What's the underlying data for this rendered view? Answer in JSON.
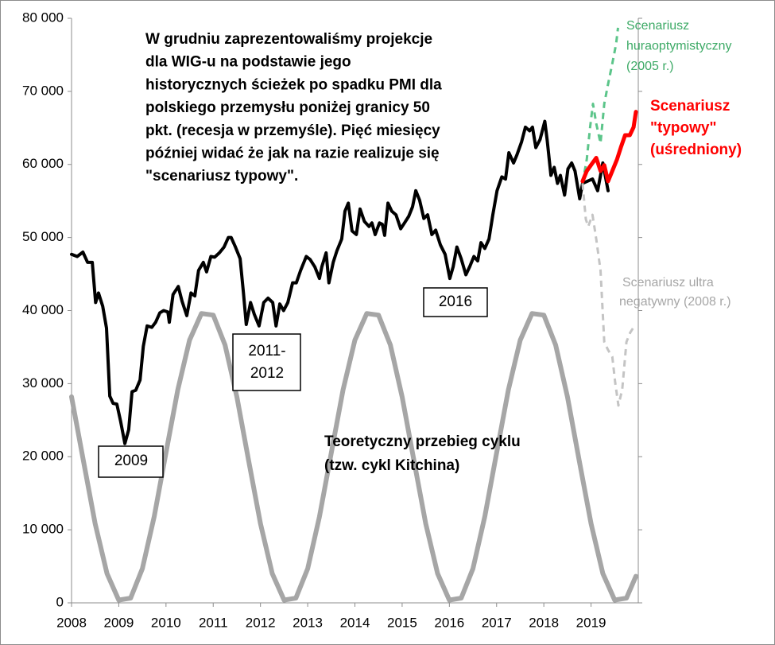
{
  "chart_data": {
    "type": "line",
    "xlim": [
      2008,
      2020
    ],
    "xticks": [
      2008,
      2009,
      2010,
      2011,
      2012,
      2013,
      2014,
      2015,
      2016,
      2017,
      2018,
      2019
    ],
    "ylim": [
      0,
      80000
    ],
    "yticks": [
      0,
      {
        "value": 10000,
        "label": "10 000"
      },
      {
        "value": 20000,
        "label": "20 000"
      },
      {
        "value": 30000,
        "label": "30 000"
      },
      {
        "value": 40000,
        "label": "40 000"
      },
      {
        "value": 50000,
        "label": "50 000"
      },
      {
        "value": 60000,
        "label": "60 000"
      },
      {
        "value": 70000,
        "label": "70 000"
      },
      {
        "value": 80000,
        "label": "80 000"
      }
    ],
    "grid": false,
    "series": [
      {
        "color": "#a6a6a6",
        "width": 6,
        "dashed": false,
        "x": [
          2008,
          2008.25,
          2008.5,
          2008.75,
          2009,
          2009.25,
          2009.5,
          2009.75,
          2010,
          2010.25,
          2010.5,
          2010.75,
          2011,
          2011.25,
          2011.5,
          2011.75,
          2012,
          2012.25,
          2012.5,
          2012.75,
          2013,
          2013.25,
          2013.5,
          2013.75,
          2014,
          2014.25,
          2014.5,
          2014.75,
          2015,
          2015.25,
          2015.5,
          2015.75,
          2016,
          2016.25,
          2016.5,
          2016.75,
          2017,
          2017.25,
          2017.5,
          2017.75,
          2018,
          2018.25,
          2018.5,
          2018.75,
          2019,
          2019.25,
          2019.5,
          2019.75,
          2019.95
        ],
        "values": [
          28200,
          19460,
          10840,
          4020,
          380,
          640,
          4680,
          11800,
          20540,
          29160,
          35960,
          39600,
          39380,
          35300,
          28200,
          19460,
          10840,
          4020,
          380,
          640,
          4680,
          11800,
          20540,
          29160,
          35960,
          39600,
          39380,
          35300,
          28200,
          19460,
          10840,
          4020,
          380,
          640,
          4680,
          11800,
          20540,
          29160,
          35960,
          39600,
          39380,
          35300,
          28200,
          19460,
          10840,
          4020,
          380,
          640,
          3640
        ]
      },
      {
        "color": "#000000",
        "width": 4,
        "dashed": false,
        "x": [
          2008.0,
          2008.12,
          2008.24,
          2008.34,
          2008.44,
          2008.51,
          2008.57,
          2008.66,
          2008.74,
          2008.81,
          2008.88,
          2008.96,
          2009.04,
          2009.13,
          2009.21,
          2009.28,
          2009.36,
          2009.45,
          2009.52,
          2009.6,
          2009.7,
          2009.78,
          2009.87,
          2009.95,
          2010.04,
          2010.07,
          2010.15,
          2010.26,
          2010.34,
          2010.44,
          2010.53,
          2010.61,
          2010.69,
          2010.79,
          2010.86,
          2010.95,
          2011.03,
          2011.13,
          2011.23,
          2011.32,
          2011.38,
          2011.47,
          2011.57,
          2011.64,
          2011.7,
          2011.79,
          2011.87,
          2011.97,
          2012.07,
          2012.16,
          2012.26,
          2012.33,
          2012.41,
          2012.49,
          2012.58,
          2012.68,
          2012.76,
          2012.85,
          2012.97,
          2013.05,
          2013.15,
          2013.25,
          2013.3,
          2013.39,
          2013.45,
          2013.54,
          2013.62,
          2013.72,
          2013.79,
          2013.86,
          2013.94,
          2014.03,
          2014.11,
          2014.2,
          2014.3,
          2014.36,
          2014.43,
          2014.52,
          2014.58,
          2014.63,
          2014.7,
          2014.78,
          2014.87,
          2014.97,
          2015.05,
          2015.14,
          2015.22,
          2015.29,
          2015.37,
          2015.46,
          2015.54,
          2015.63,
          2015.71,
          2015.81,
          2015.91,
          2016.01,
          2016.08,
          2016.16,
          2016.25,
          2016.35,
          2016.43,
          2016.52,
          2016.6,
          2016.67,
          2016.75,
          2016.84,
          2016.92,
          2017.01,
          2017.11,
          2017.19,
          2017.26,
          2017.36,
          2017.43,
          2017.53,
          2017.61,
          2017.7,
          2017.76,
          2017.83,
          2017.92,
          2018.02,
          2018.07,
          2018.15,
          2018.22,
          2018.29,
          2018.35,
          2018.44,
          2018.51,
          2018.59,
          2018.66,
          2018.76,
          2018.82,
          2019.03,
          2019.14,
          2019.25,
          2019.36
        ],
        "values": [
          47700,
          47400,
          48000,
          46600,
          46600,
          41100,
          42400,
          40600,
          37600,
          28300,
          27300,
          27200,
          24800,
          21800,
          23700,
          28900,
          29100,
          30500,
          35100,
          37900,
          37700,
          38400,
          39700,
          40000,
          39800,
          38400,
          42200,
          43300,
          41300,
          39300,
          42400,
          42000,
          45500,
          46600,
          45300,
          47400,
          47300,
          47900,
          48700,
          50000,
          50000,
          48700,
          47100,
          42400,
          38100,
          41100,
          39500,
          37900,
          41100,
          41700,
          41100,
          37900,
          40900,
          40000,
          41100,
          43800,
          43800,
          45500,
          47400,
          47000,
          46000,
          44400,
          46000,
          47900,
          43800,
          46600,
          48200,
          49800,
          53600,
          54700,
          50900,
          50400,
          53900,
          52200,
          51500,
          52000,
          50400,
          52000,
          51800,
          50300,
          54700,
          53600,
          53100,
          51200,
          52000,
          52900,
          54200,
          56400,
          55100,
          52600,
          53100,
          50400,
          51000,
          49000,
          47700,
          44400,
          46000,
          48700,
          47100,
          44900,
          46000,
          47400,
          46800,
          49300,
          48500,
          49800,
          53100,
          56400,
          58300,
          58000,
          61600,
          60200,
          61300,
          63100,
          65100,
          64600,
          65100,
          62300,
          63400,
          65900,
          63400,
          58500,
          59600,
          57400,
          58500,
          55800,
          59400,
          60200,
          59100,
          55300,
          57400,
          58000,
          56400,
          60200,
          56400
        ]
      },
      {
        "color": "#5cc58a",
        "width": 3,
        "dashed": true,
        "x": [
          2018.82,
          2018.91,
          2018.98,
          2019.04,
          2019.11,
          2019.2,
          2019.28,
          2019.36,
          2019.45,
          2019.53,
          2019.57
        ],
        "values": [
          57400,
          60700,
          65100,
          68300,
          65600,
          62900,
          68300,
          71000,
          73800,
          76500,
          78700
        ]
      },
      {
        "color": "#c4c4c4",
        "width": 3,
        "dashed": true,
        "x": [
          2018.82,
          2018.89,
          2018.94,
          2019.03,
          2019.11,
          2019.2,
          2019.28,
          2019.36,
          2019.45,
          2019.51,
          2019.58,
          2019.66,
          2019.75,
          2019.83,
          2019.92
        ],
        "values": [
          57400,
          52500,
          51500,
          53100,
          49800,
          45500,
          35700,
          34600,
          33700,
          30200,
          27000,
          29200,
          35700,
          37000,
          37900
        ]
      },
      {
        "color": "#ff0000",
        "width": 5,
        "dashed": false,
        "x": [
          2018.82,
          2018.91,
          2019.03,
          2019.11,
          2019.2,
          2019.28,
          2019.36,
          2019.45,
          2019.55,
          2019.63,
          2019.72,
          2019.82,
          2019.9,
          2019.95
        ],
        "values": [
          57700,
          59100,
          60200,
          60900,
          59100,
          59900,
          57700,
          59100,
          60700,
          62300,
          64000,
          64000,
          65100,
          67200
        ]
      }
    ],
    "annotations": [
      {
        "lines": [
          "W grudniu  zaprezentowaliśmy projekcje",
          "dla WIG-u na podstawie jego",
          "historycznych  ścieżek po spadku PMI dla",
          "polskiego przemysłu poniżej granicy 50",
          "pkt. (recesja w przemyśle). Pięć miesięcy",
          "później  widać że jak na razie realizuje się",
          "\"scenariusz typowy\"."
        ]
      },
      {
        "lines": [
          "Teoretyczny przebieg cyklu",
          "(tzw. cykl Kitchina)"
        ]
      },
      {
        "lines": [
          "2009"
        ]
      },
      {
        "lines": [
          "2011-",
          "2012"
        ]
      },
      {
        "lines": [
          "2016"
        ]
      },
      {
        "lines": [
          "Scenariusz",
          "huraoptymistyczny",
          "(2005 r.)"
        ],
        "color": "#3daa66"
      },
      {
        "lines": [
          "Scenariusz",
          "\"typowy\"",
          "(uśredniony)"
        ],
        "color": "#ff0000"
      },
      {
        "lines": [
          "Scenariusz ultra",
          "negatywny (2008 r.)"
        ],
        "color": "#a6a6a6"
      }
    ]
  }
}
